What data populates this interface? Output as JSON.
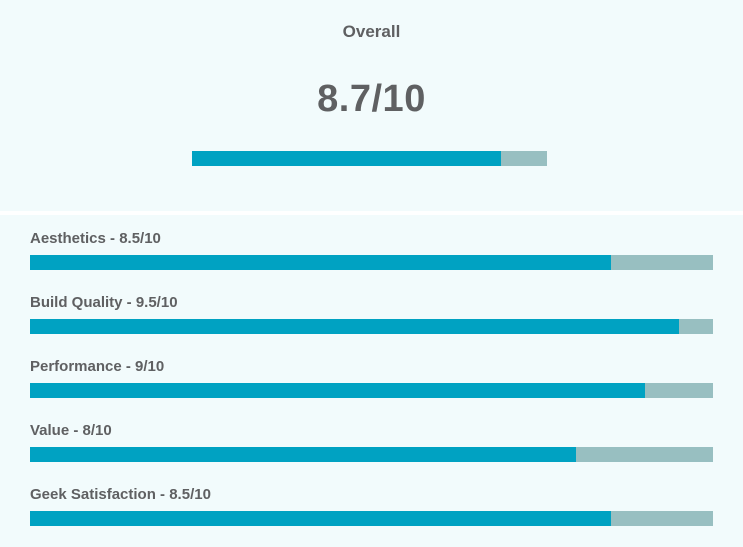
{
  "overall": {
    "label": "Overall",
    "score_text": "8.7/10",
    "fraction": 0.87
  },
  "criteria": [
    {
      "label": "Aesthetics - 8.5/10",
      "fraction": 0.85
    },
    {
      "label": "Build Quality - 9.5/10",
      "fraction": 0.95
    },
    {
      "label": "Performance - 9/10",
      "fraction": 0.9
    },
    {
      "label": "Value - 8/10",
      "fraction": 0.8
    },
    {
      "label": "Geek Satisfaction - 8.5/10",
      "fraction": 0.85
    }
  ],
  "colors": {
    "fill": "#00a2c2",
    "track": "#98bfc1",
    "panel": "#f2fbfc",
    "text": "#5f6062"
  }
}
